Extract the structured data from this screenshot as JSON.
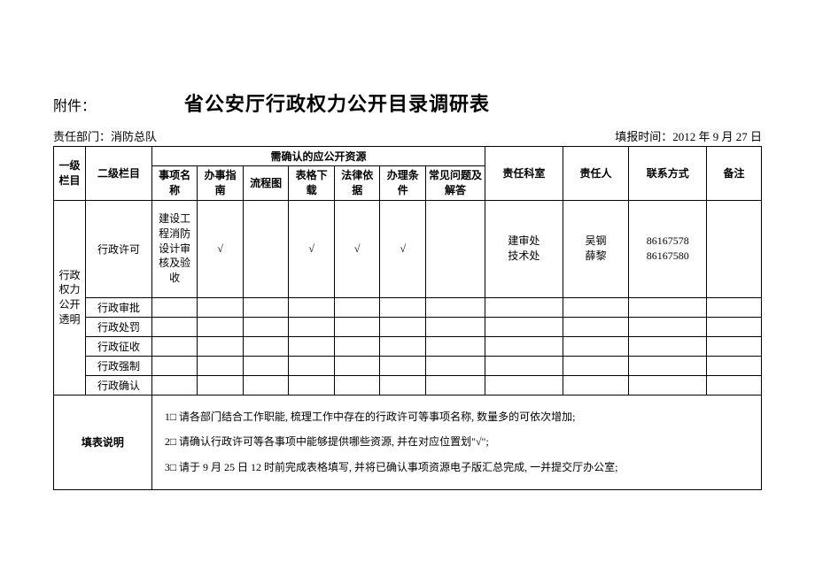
{
  "attachment_label": "附件：",
  "title": "省公安厅行政权力公开目录调研表",
  "dept_label": "责任部门：",
  "dept_value": "消防总队",
  "fill_time_label": "填报时间：",
  "fill_time_value": "2012 年 9 月 27 日",
  "headers": {
    "level1": "一级栏目",
    "level2": "二级栏目",
    "resource_group": "需确认的应公开资源",
    "item_name": "事项名称",
    "guide": "办事指南",
    "flowchart": "流程图",
    "form_download": "表格下载",
    "legal_basis": "法律依据",
    "conditions": "办理条件",
    "faq": "常见问题及解答",
    "dept_room": "责任科室",
    "responsible": "责任人",
    "contact": "联系方式",
    "remark": "备注"
  },
  "level1_value": "行政权力公开透明",
  "rows": [
    {
      "level2": "行政许可",
      "item_name": "建设工程消防设计审核及验收",
      "guide": "√",
      "flowchart": "",
      "form_download": "√",
      "legal_basis": "√",
      "conditions": "√",
      "faq": "",
      "dept_room": "建审处\n技术处",
      "responsible": "吴钢\n薛黎",
      "contact": "86167578\n86167580",
      "remark": ""
    },
    {
      "level2": "行政审批"
    },
    {
      "level2": "行政处罚"
    },
    {
      "level2": "行政征收"
    },
    {
      "level2": "行政强制"
    },
    {
      "level2": "行政确认"
    }
  ],
  "instructions_label": "填表说明",
  "instructions": [
    "1□ 请各部门结合工作职能, 梳理工作中存在的行政许可等事项名称, 数量多的可依次增加;",
    "2□ 请确认行政许可等各事项中能够提供哪些资源, 并在对应位置划\"√\";",
    "3□ 请于 9 月 25 日 12 时前完成表格填写, 并将已确认事项资源电子版汇总完成, 一并提交厅办公室;"
  ]
}
